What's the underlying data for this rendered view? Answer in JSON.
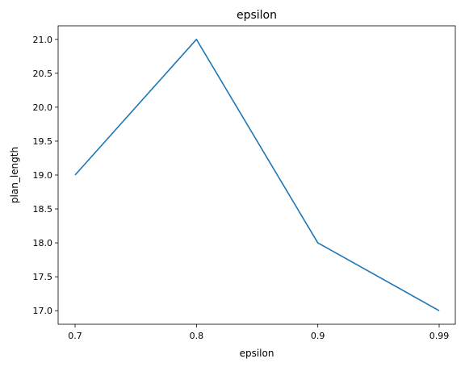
{
  "chart_data": {
    "type": "line",
    "title": "epsilon",
    "xlabel": "epsilon",
    "ylabel": "plan_length",
    "categories": [
      "0.7",
      "0.8",
      "0.9",
      "0.99"
    ],
    "series": [
      {
        "values": [
          19,
          21,
          18,
          17
        ],
        "color": "#1f77b4"
      }
    ],
    "ylim": [
      16.8,
      21.2
    ],
    "yticks": [
      "17.0",
      "17.5",
      "18.0",
      "18.5",
      "19.0",
      "19.5",
      "20.0",
      "20.5",
      "21.0"
    ],
    "grid": false,
    "legend": "none"
  }
}
